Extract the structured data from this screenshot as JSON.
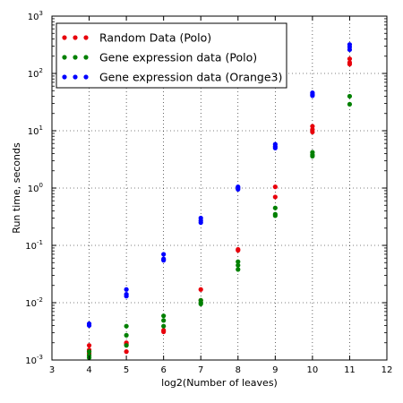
{
  "chart_data": {
    "type": "scatter",
    "title": "",
    "xlabel": "log2(Number of leaves)",
    "ylabel": "Run time, seconds",
    "xlim": [
      3,
      12
    ],
    "xticks": [
      "3",
      "4",
      "5",
      "6",
      "7",
      "8",
      "9",
      "10",
      "11",
      "12"
    ],
    "ylim": [
      0.001,
      1000
    ],
    "yscale": "log",
    "yticks": [
      {
        "base": "10",
        "exp": "-3"
      },
      {
        "base": "10",
        "exp": "-2"
      },
      {
        "base": "10",
        "exp": "-1"
      },
      {
        "base": "10",
        "exp": "0"
      },
      {
        "base": "10",
        "exp": "1"
      },
      {
        "base": "10",
        "exp": "2"
      },
      {
        "base": "10",
        "exp": "3"
      }
    ],
    "grid": true,
    "legend_position": "top-left",
    "series": [
      {
        "name": "Random Data (Polo)",
        "color": "#e8000b",
        "points": [
          [
            4,
            0.0018
          ],
          [
            4,
            0.0015
          ],
          [
            4,
            0.0013
          ],
          [
            5,
            0.002
          ],
          [
            5,
            0.0019
          ],
          [
            5,
            0.0014
          ],
          [
            6,
            0.0033
          ],
          [
            6,
            0.0031
          ],
          [
            7,
            0.017
          ],
          [
            7,
            0.011
          ],
          [
            8,
            0.085
          ],
          [
            8,
            0.082
          ],
          [
            9,
            1.05
          ],
          [
            9,
            0.7
          ],
          [
            10,
            12.0
          ],
          [
            10,
            10.5
          ],
          [
            10,
            9.5
          ],
          [
            11,
            180
          ],
          [
            11,
            155
          ],
          [
            11,
            145
          ]
        ]
      },
      {
        "name": "Gene expression data (Polo)",
        "color": "#008000",
        "points": [
          [
            4,
            0.0014
          ],
          [
            4,
            0.0012
          ],
          [
            4,
            0.0011
          ],
          [
            5,
            0.0039
          ],
          [
            5,
            0.0027
          ],
          [
            5,
            0.0018
          ],
          [
            6,
            0.0059
          ],
          [
            6,
            0.0049
          ],
          [
            6,
            0.0039
          ],
          [
            7,
            0.011
          ],
          [
            7,
            0.01
          ],
          [
            7,
            0.0095
          ],
          [
            8,
            0.052
          ],
          [
            8,
            0.045
          ],
          [
            8,
            0.038
          ],
          [
            9,
            0.45
          ],
          [
            9,
            0.35
          ],
          [
            9,
            0.33
          ],
          [
            10,
            4.2
          ],
          [
            10,
            3.8
          ],
          [
            10,
            3.6
          ],
          [
            11,
            40
          ],
          [
            11,
            29
          ]
        ]
      },
      {
        "name": "Gene expression data (Orange3)",
        "color": "#0000ff",
        "points": [
          [
            4,
            0.0043
          ],
          [
            4,
            0.004
          ],
          [
            5,
            0.017
          ],
          [
            5,
            0.014
          ],
          [
            5,
            0.013
          ],
          [
            6,
            0.07
          ],
          [
            6,
            0.058
          ],
          [
            6,
            0.055
          ],
          [
            7,
            0.3
          ],
          [
            7,
            0.27
          ],
          [
            7,
            0.25
          ],
          [
            8,
            1.05
          ],
          [
            8,
            1.0
          ],
          [
            8,
            0.95
          ],
          [
            9,
            5.8
          ],
          [
            9,
            5.3
          ],
          [
            9,
            5.0
          ],
          [
            10,
            46
          ],
          [
            10,
            43
          ],
          [
            10,
            41
          ],
          [
            11,
            320
          ],
          [
            11,
            290
          ],
          [
            11,
            260
          ]
        ]
      }
    ]
  }
}
